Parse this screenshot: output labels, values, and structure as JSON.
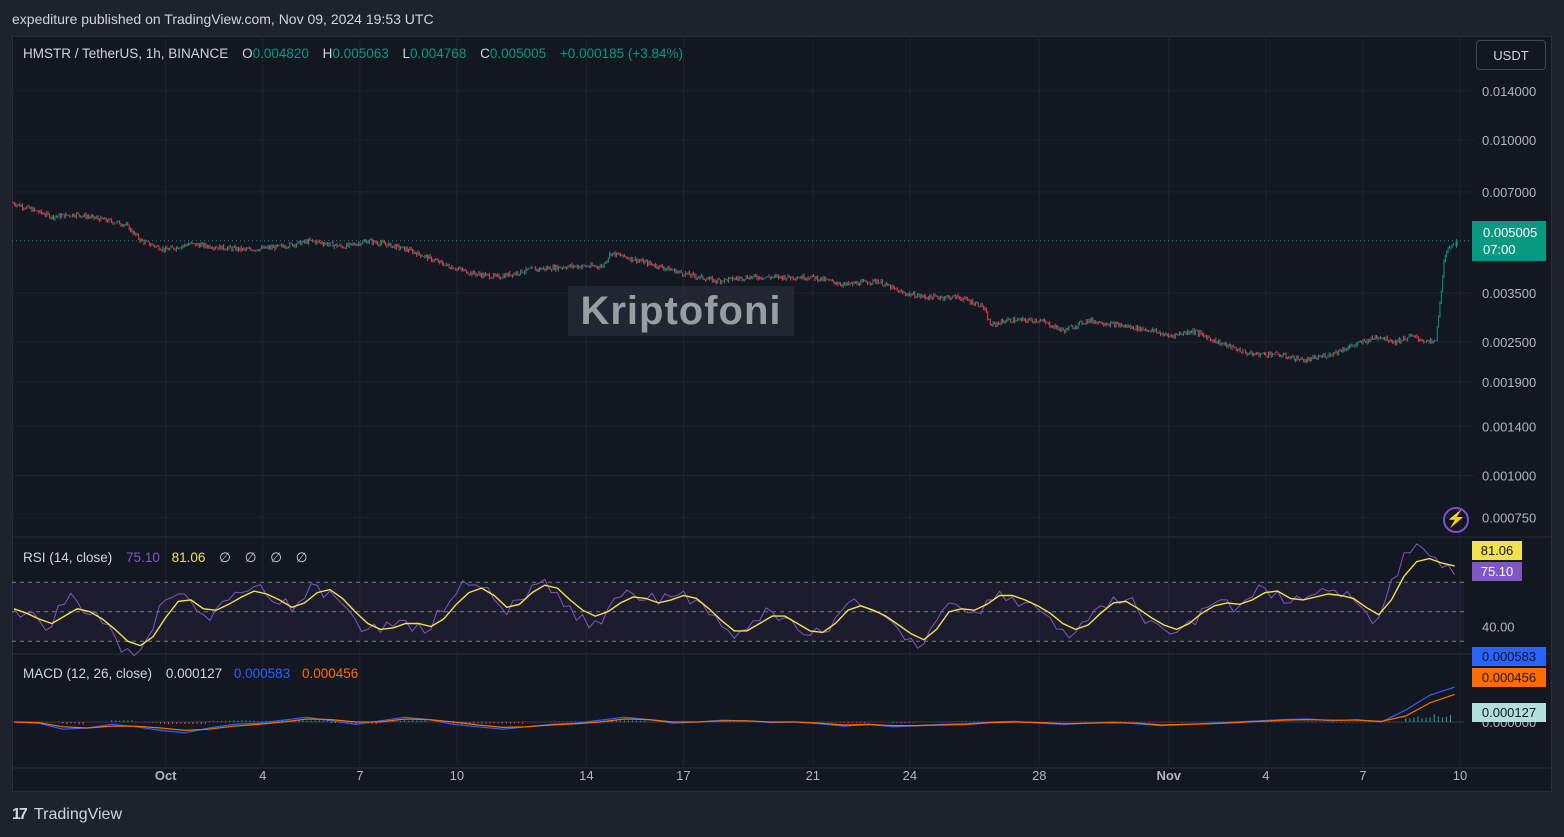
{
  "header": {
    "published": "expediture published on TradingView.com, Nov 09, 2024 19:53 UTC"
  },
  "legend": {
    "symbol": "HMSTR / TetherUS, 1h, BINANCE",
    "o_label": "O",
    "o_value": "0.004820",
    "h_label": "H",
    "h_value": "0.005063",
    "l_label": "L",
    "l_value": "0.004768",
    "c_label": "C",
    "c_value": "0.005005",
    "change": "+0.000185 (+3.84%)"
  },
  "currency_button": "USDT",
  "last_price": {
    "value": "0.005005",
    "countdown": "07:00"
  },
  "watermark": "Kriptofoni",
  "rsi": {
    "label": "RSI (14, close)",
    "value": "75.10",
    "ma_value": "81.06",
    "empty_1": "∅",
    "empty_2": "∅",
    "empty_3": "∅",
    "empty_4": "∅",
    "level_label": "40.00"
  },
  "macd": {
    "label": "MACD (12, 26, close)",
    "histogram": "0.000127",
    "macd_value": "0.000583",
    "signal_value": "0.000456",
    "zero_label": "0.000000"
  },
  "footer": {
    "logo": "17",
    "brand": "TradingView"
  },
  "colors": {
    "up": "#089981",
    "down": "#f23645",
    "rsi_line": "#7e57c2",
    "rsi_ma": "#f0e24a",
    "macd_line": "#2962ff",
    "signal_line": "#ff6d00",
    "price_tag": "#089981"
  },
  "chart_data": [
    {
      "type": "candlestick",
      "title": "HMSTR / TetherUS, 1h, BINANCE",
      "scale": "log",
      "y_tick_labels": [
        "0.014000",
        "0.010000",
        "0.007000",
        "0.005005",
        "0.003500",
        "0.002500",
        "0.001900",
        "0.001400",
        "0.001000",
        "0.000750"
      ],
      "y_ticks": [
        0.014,
        0.01,
        0.007,
        0.0035,
        0.0025,
        0.0019,
        0.0014,
        0.001,
        0.00075
      ],
      "x_tick_labels": [
        "Oct",
        "4",
        "7",
        "10",
        "14",
        "17",
        "21",
        "24",
        "28",
        "Nov",
        "4",
        "7",
        "10"
      ],
      "x_ticks": [
        "2024-10-01",
        "2024-10-04",
        "2024-10-07",
        "2024-10-10",
        "2024-10-14",
        "2024-10-17",
        "2024-10-21",
        "2024-10-24",
        "2024-10-28",
        "2024-11-01",
        "2024-11-04",
        "2024-11-07",
        "2024-11-10"
      ],
      "x_range": [
        "2024-09-26T06:00",
        "2024-11-10T03:00"
      ],
      "close_path": [
        [
          "2024-09-26T06:00",
          0.0065
        ],
        [
          "2024-09-27T12:00",
          0.0059
        ],
        [
          "2024-09-28T06:00",
          0.006
        ],
        [
          "2024-09-29T00:00",
          0.0058
        ],
        [
          "2024-09-29T18:00",
          0.0056
        ],
        [
          "2024-09-30T06:00",
          0.005
        ],
        [
          "2024-10-01T00:00",
          0.0047
        ],
        [
          "2024-10-01T18:00",
          0.0049
        ],
        [
          "2024-10-02T12:00",
          0.0048
        ],
        [
          "2024-10-03T12:00",
          0.0047
        ],
        [
          "2024-10-04T12:00",
          0.0048
        ],
        [
          "2024-10-05T12:00",
          0.005
        ],
        [
          "2024-10-06T12:00",
          0.0048
        ],
        [
          "2024-10-07T06:00",
          0.005
        ],
        [
          "2024-10-07T18:00",
          0.0049
        ],
        [
          "2024-10-08T12:00",
          0.0047
        ],
        [
          "2024-10-09T00:00",
          0.0045
        ],
        [
          "2024-10-09T18:00",
          0.0042
        ],
        [
          "2024-10-10T12:00",
          0.004
        ],
        [
          "2024-10-11T06:00",
          0.0039
        ],
        [
          "2024-10-12T06:00",
          0.0041
        ],
        [
          "2024-10-13T12:00",
          0.0042
        ],
        [
          "2024-10-14T12:00",
          0.0042
        ],
        [
          "2024-10-14T18:00",
          0.0046
        ],
        [
          "2024-10-15T12:00",
          0.0044
        ],
        [
          "2024-10-16T06:00",
          0.0042
        ],
        [
          "2024-10-17T00:00",
          0.004
        ],
        [
          "2024-10-18T00:00",
          0.0038
        ],
        [
          "2024-10-19T00:00",
          0.0039
        ],
        [
          "2024-10-20T00:00",
          0.0039
        ],
        [
          "2024-10-21T00:00",
          0.0039
        ],
        [
          "2024-10-22T00:00",
          0.0037
        ],
        [
          "2024-10-23T00:00",
          0.0038
        ],
        [
          "2024-10-23T18:00",
          0.0035
        ],
        [
          "2024-10-24T12:00",
          0.0034
        ],
        [
          "2024-10-25T12:00",
          0.0034
        ],
        [
          "2024-10-26T06:00",
          0.0032
        ],
        [
          "2024-10-26T12:00",
          0.0028
        ],
        [
          "2024-10-27T00:00",
          0.0029
        ],
        [
          "2024-10-28T00:00",
          0.0029
        ],
        [
          "2024-10-28T18:00",
          0.0027
        ],
        [
          "2024-10-29T12:00",
          0.0029
        ],
        [
          "2024-10-30T12:00",
          0.0028
        ],
        [
          "2024-10-31T12:00",
          0.0027
        ],
        [
          "2024-11-01T00:00",
          0.0026
        ],
        [
          "2024-11-01T18:00",
          0.0027
        ],
        [
          "2024-11-02T12:00",
          0.0025
        ],
        [
          "2024-11-03T12:00",
          0.0023
        ],
        [
          "2024-11-04T06:00",
          0.0023
        ],
        [
          "2024-11-05T06:00",
          0.0022
        ],
        [
          "2024-11-06T00:00",
          0.0023
        ],
        [
          "2024-11-06T12:00",
          0.0024
        ],
        [
          "2024-11-07T00:00",
          0.0025
        ],
        [
          "2024-11-07T12:00",
          0.0026
        ],
        [
          "2024-11-08T00:00",
          0.0025
        ],
        [
          "2024-11-08T12:00",
          0.0026
        ],
        [
          "2024-11-09T00:00",
          0.0025
        ],
        [
          "2024-11-09T06:00",
          0.0025
        ],
        [
          "2024-11-09T09:00",
          0.0032
        ],
        [
          "2024-11-09T12:00",
          0.0043
        ],
        [
          "2024-11-09T15:00",
          0.0047
        ],
        [
          "2024-11-09T18:00",
          0.0049
        ],
        [
          "2024-11-09T20:00",
          0.005005
        ]
      ],
      "last_bar": {
        "open": 0.00482,
        "high": 0.005063,
        "low": 0.004768,
        "close": 0.005005
      }
    },
    {
      "type": "line",
      "title": "RSI (14, close)",
      "y_tick_labels": [
        "81.06",
        "75.10",
        "40.00"
      ],
      "bands": [
        70,
        50,
        30
      ],
      "series": [
        {
          "name": "RSI",
          "values": [
            52,
            49,
            44,
            40,
            55,
            57,
            48,
            42,
            33,
            25,
            24,
            38,
            58,
            62,
            57,
            48,
            52,
            58,
            63,
            67,
            61,
            55,
            50,
            59,
            68,
            64,
            55,
            45,
            38,
            36,
            40,
            44,
            42,
            38,
            50,
            62,
            68,
            66,
            58,
            48,
            58,
            68,
            72,
            63,
            54,
            48,
            44,
            52,
            60,
            62,
            58,
            55,
            60,
            64,
            58,
            48,
            40,
            32,
            38,
            44,
            50,
            46,
            38,
            34,
            36,
            46,
            56,
            54,
            50,
            46,
            38,
            32,
            28,
            44,
            56,
            52,
            50,
            58,
            64,
            60,
            56,
            52,
            46,
            38,
            36,
            44,
            54,
            60,
            58,
            50,
            44,
            38,
            36,
            44,
            52,
            56,
            58,
            54,
            60,
            66,
            64,
            56,
            58,
            62,
            64,
            60,
            58,
            50,
            46,
            72,
            90,
            96,
            88,
            80,
            75.1
          ]
        },
        {
          "name": "MA",
          "values": [
            52,
            49,
            45,
            42,
            47,
            52,
            50,
            45,
            38,
            30,
            27,
            33,
            46,
            57,
            58,
            52,
            51,
            55,
            60,
            64,
            62,
            58,
            53,
            56,
            63,
            65,
            59,
            50,
            42,
            38,
            39,
            42,
            42,
            40,
            45,
            55,
            63,
            66,
            61,
            53,
            55,
            63,
            68,
            66,
            58,
            51,
            47,
            50,
            56,
            60,
            59,
            56,
            58,
            61,
            59,
            52,
            44,
            37,
            37,
            42,
            47,
            47,
            42,
            37,
            36,
            42,
            51,
            54,
            51,
            47,
            41,
            35,
            31,
            38,
            50,
            52,
            51,
            55,
            61,
            61,
            58,
            54,
            49,
            42,
            38,
            41,
            49,
            56,
            57,
            52,
            46,
            41,
            38,
            42,
            49,
            54,
            56,
            55,
            58,
            63,
            64,
            59,
            58,
            60,
            62,
            61,
            59,
            53,
            48,
            58,
            74,
            84,
            86,
            83,
            81.06
          ]
        }
      ]
    },
    {
      "type": "line",
      "title": "MACD (12, 26, close)",
      "y_tick_labels": [
        "0.000583",
        "0.000456",
        "0.000127",
        "0.000000"
      ],
      "series": [
        {
          "name": "MACD",
          "values": [
            0,
            -2e-05,
            -0.00012,
            -0.0001,
            -4e-05,
            -8e-05,
            -0.00014,
            -0.00018,
            -0.0001,
            -4e-05,
            -2e-05,
            3e-05,
            8e-05,
            2e-05,
            -4e-05,
            2e-05,
            8e-05,
            4e-05,
            -4e-05,
            -8e-05,
            -0.00012,
            -8e-05,
            -4e-05,
            -2e-05,
            3e-05,
            8e-05,
            4e-05,
            -2e-05,
            0.0,
            3e-05,
            2e-05,
            -1e-05,
            0.0,
            -3e-05,
            -7e-05,
            -4e-05,
            -8e-05,
            -6e-05,
            -4e-05,
            -3e-05,
            0.0,
            1e-05,
            -2e-05,
            -4e-05,
            -2e-05,
            0.0,
            -3e-05,
            -6e-05,
            -4e-05,
            -2e-05,
            0.0,
            2e-05,
            4e-05,
            5e-05,
            2e-05,
            4e-05,
            0.0,
            0.0002,
            0.00045,
            0.00058
          ]
        },
        {
          "name": "Signal",
          "values": [
            0,
            -1e-05,
            -8e-05,
            -0.0001,
            -7e-05,
            -7e-05,
            -0.0001,
            -0.00014,
            -0.00012,
            -7e-05,
            -4e-05,
            0.0,
            5e-05,
            4e-05,
            0.0,
            0.0,
            5e-05,
            4e-05,
            0.0,
            -5e-05,
            -9e-05,
            -8e-05,
            -5e-05,
            -3e-05,
            0.0,
            5e-05,
            4e-05,
            0.0,
            0.0,
            2e-05,
            2e-05,
            0.0,
            0.0,
            -2e-05,
            -5e-05,
            -4e-05,
            -6e-05,
            -6e-05,
            -5e-05,
            -4e-05,
            -1e-05,
            0.0,
            -1e-05,
            -3e-05,
            -2e-05,
            -1e-05,
            -2e-05,
            -5e-05,
            -4e-05,
            -3e-05,
            -1e-05,
            1e-05,
            3e-05,
            4e-05,
            3e-05,
            3e-05,
            1e-05,
            0.0001,
            0.00032,
            0.00046
          ]
        }
      ]
    }
  ]
}
